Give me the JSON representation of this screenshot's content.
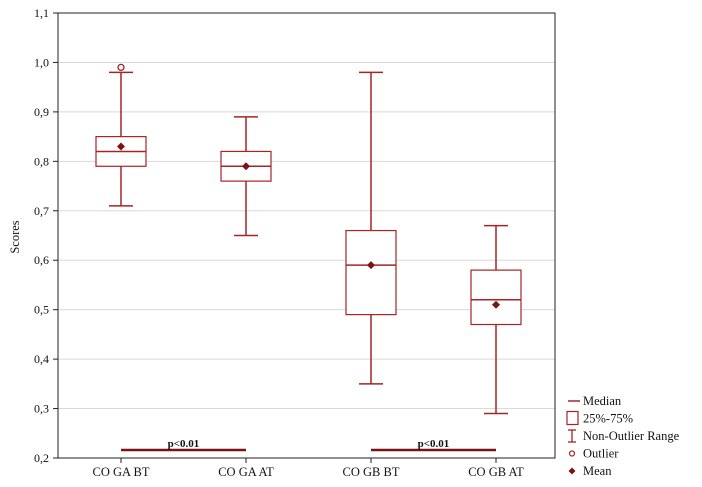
{
  "chart_data": {
    "type": "box",
    "title": "",
    "xlabel": "",
    "ylabel": "Scores",
    "ylim": [
      0.2,
      1.1
    ],
    "yticks": [
      "0,2",
      "0,3",
      "0,4",
      "0,5",
      "0,6",
      "0,7",
      "0,8",
      "0,9",
      "1,0",
      "1,1"
    ],
    "grid": true,
    "categories": [
      "CO GA BT",
      "CO GA AT",
      "CO GB BT",
      "CO GB AT"
    ],
    "boxes": [
      {
        "category": "CO GA BT",
        "min": 0.71,
        "q1": 0.79,
        "median": 0.82,
        "q3": 0.85,
        "max": 0.98,
        "mean": 0.83,
        "outliers": [
          0.99
        ]
      },
      {
        "category": "CO GA AT",
        "min": 0.65,
        "q1": 0.76,
        "median": 0.79,
        "q3": 0.82,
        "max": 0.89,
        "mean": 0.79,
        "outliers": []
      },
      {
        "category": "CO GB BT",
        "min": 0.35,
        "q1": 0.49,
        "median": 0.59,
        "q3": 0.66,
        "max": 0.98,
        "mean": 0.59,
        "outliers": []
      },
      {
        "category": "CO GB AT",
        "min": 0.29,
        "q1": 0.47,
        "median": 0.52,
        "q3": 0.58,
        "max": 0.67,
        "mean": 0.51,
        "outliers": []
      }
    ],
    "annotations": [
      {
        "text": "p<0.01",
        "from": "CO GA BT",
        "to": "CO GA AT"
      },
      {
        "text": "p<0.01",
        "from": "CO GB BT",
        "to": "CO GB AT"
      }
    ],
    "legend": {
      "position": "bottom-right",
      "items": [
        {
          "label": "Median",
          "symbol": "line"
        },
        {
          "label": "25%-75%",
          "symbol": "box"
        },
        {
          "label": "Non-Outlier Range",
          "symbol": "whisker"
        },
        {
          "label": "Outlier",
          "symbol": "circle"
        },
        {
          "label": "Mean",
          "symbol": "diamond"
        }
      ]
    },
    "colors": {
      "line": "#a52424",
      "mean": "#7a1414",
      "sig": "#7a1414",
      "grid": "#d9d9d9",
      "axis": "#222222"
    }
  }
}
